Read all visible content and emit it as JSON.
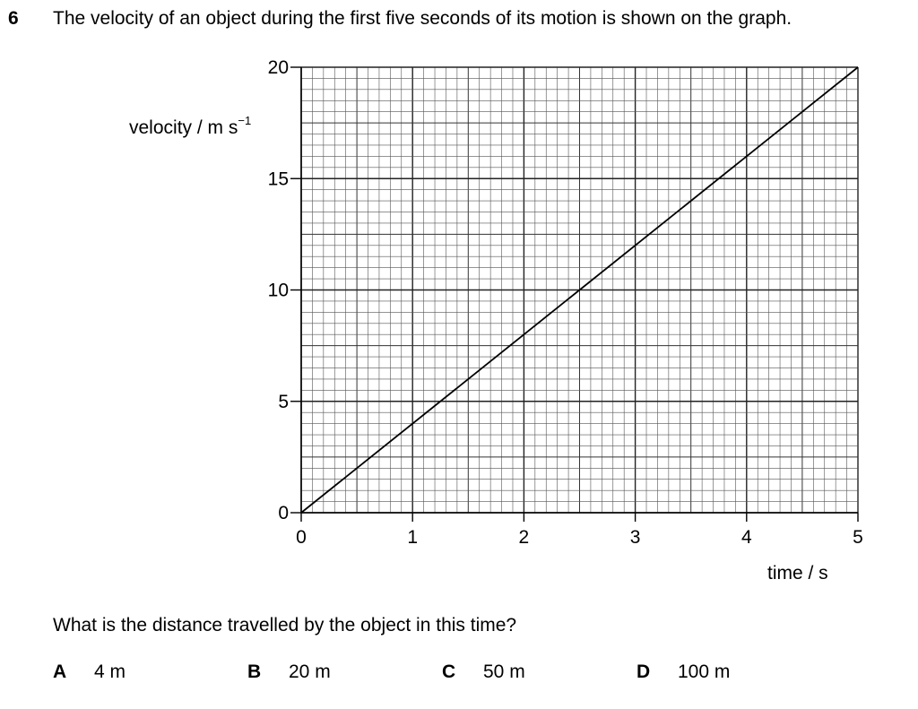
{
  "question": {
    "number": "6",
    "text": "The velocity of an object during the first five seconds of its motion is shown on the graph.",
    "prompt": "What is the distance travelled by the object in this time?",
    "options": [
      {
        "letter": "A",
        "text": "4 m"
      },
      {
        "letter": "B",
        "text": "20 m"
      },
      {
        "letter": "C",
        "text": "50 m"
      },
      {
        "letter": "D",
        "text": "100 m"
      }
    ]
  },
  "chart_data": {
    "type": "line",
    "title": "",
    "ylabel": "velocity / m s",
    "ylabel_sup": "−1",
    "xlabel": "time / s",
    "xlim": [
      0,
      5
    ],
    "ylim": [
      0,
      20
    ],
    "x_ticks": [
      0,
      1,
      2,
      3,
      4,
      5
    ],
    "y_ticks": [
      0,
      5,
      10,
      15,
      20
    ],
    "grid": true,
    "series": [
      {
        "x": [
          0,
          5
        ],
        "y": [
          0,
          20
        ],
        "color": "#000000"
      }
    ]
  }
}
